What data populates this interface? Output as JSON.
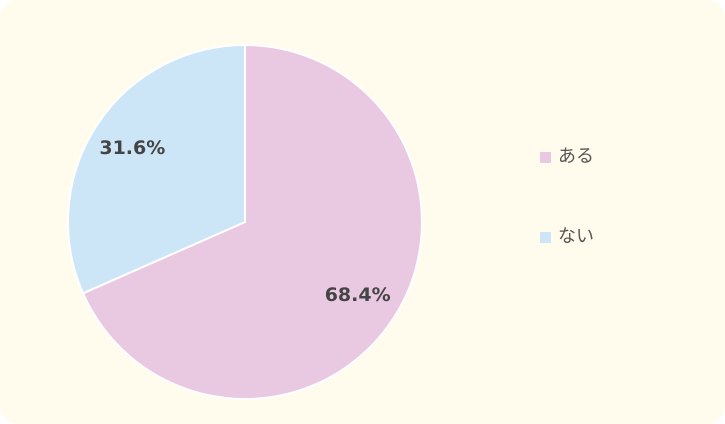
{
  "chart_data": {
    "type": "pie",
    "categories": [
      "ある",
      "ない"
    ],
    "values": [
      68.4,
      31.6
    ],
    "value_labels": [
      "68.4%",
      "31.6%"
    ],
    "colors": [
      "#e9c9e2",
      "#cce6f7"
    ],
    "legend": "right"
  }
}
